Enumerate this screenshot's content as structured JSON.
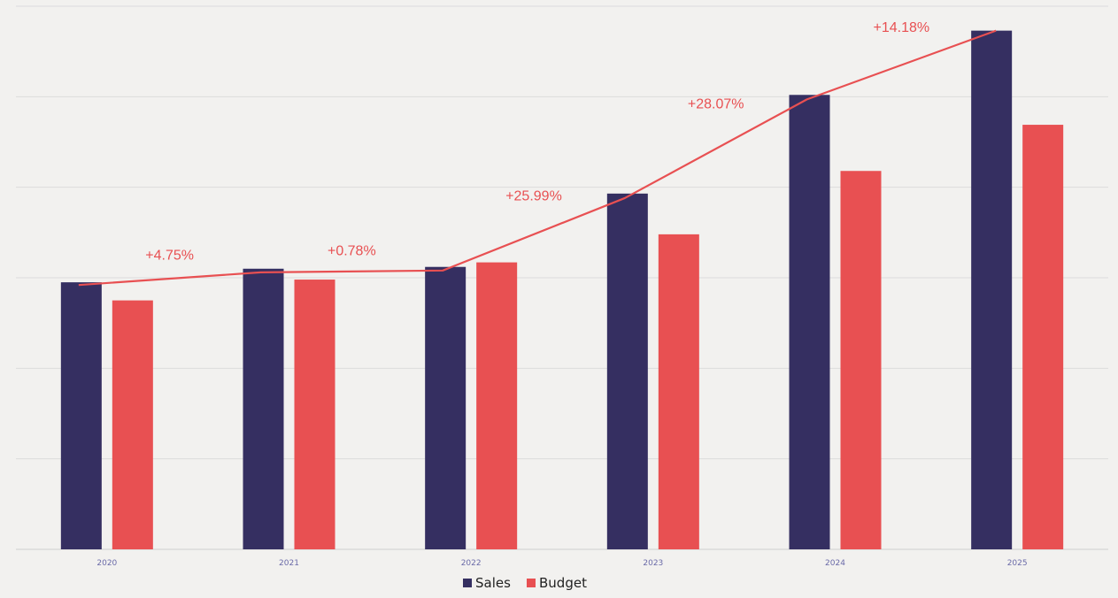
{
  "chart_data": {
    "type": "bar",
    "title": "",
    "xlabel": "",
    "ylabel": "",
    "categories": [
      "2020",
      "2021",
      "2022",
      "2023",
      "2024",
      "2025"
    ],
    "series": [
      {
        "name": "Sales",
        "values": [
          29.5,
          31.0,
          31.2,
          39.3,
          50.2,
          57.3
        ]
      },
      {
        "name": "Budget",
        "values": [
          27.5,
          29.8,
          31.7,
          34.8,
          41.8,
          46.9
        ]
      }
    ],
    "line": {
      "values": [
        29.2,
        30.6,
        30.8,
        38.8,
        49.7,
        57.3
      ],
      "growth_labels": [
        "+4.75%",
        "+0.78%",
        "+25.99%",
        "+28.07%",
        "+14.18%"
      ]
    },
    "ylim": [
      0,
      60
    ],
    "y_gridlines": [
      10,
      20,
      30,
      40,
      50,
      60
    ],
    "grid": true,
    "legend": {
      "placement": "bottom-center",
      "entries": [
        "Sales",
        "Budget"
      ]
    }
  },
  "colors": {
    "sales": "#352f61",
    "budget": "#e85052",
    "line": "#e85052",
    "grid": "#dcdcdc",
    "axis": "#cfcfcf",
    "tick_label": "#6a6aa8"
  }
}
